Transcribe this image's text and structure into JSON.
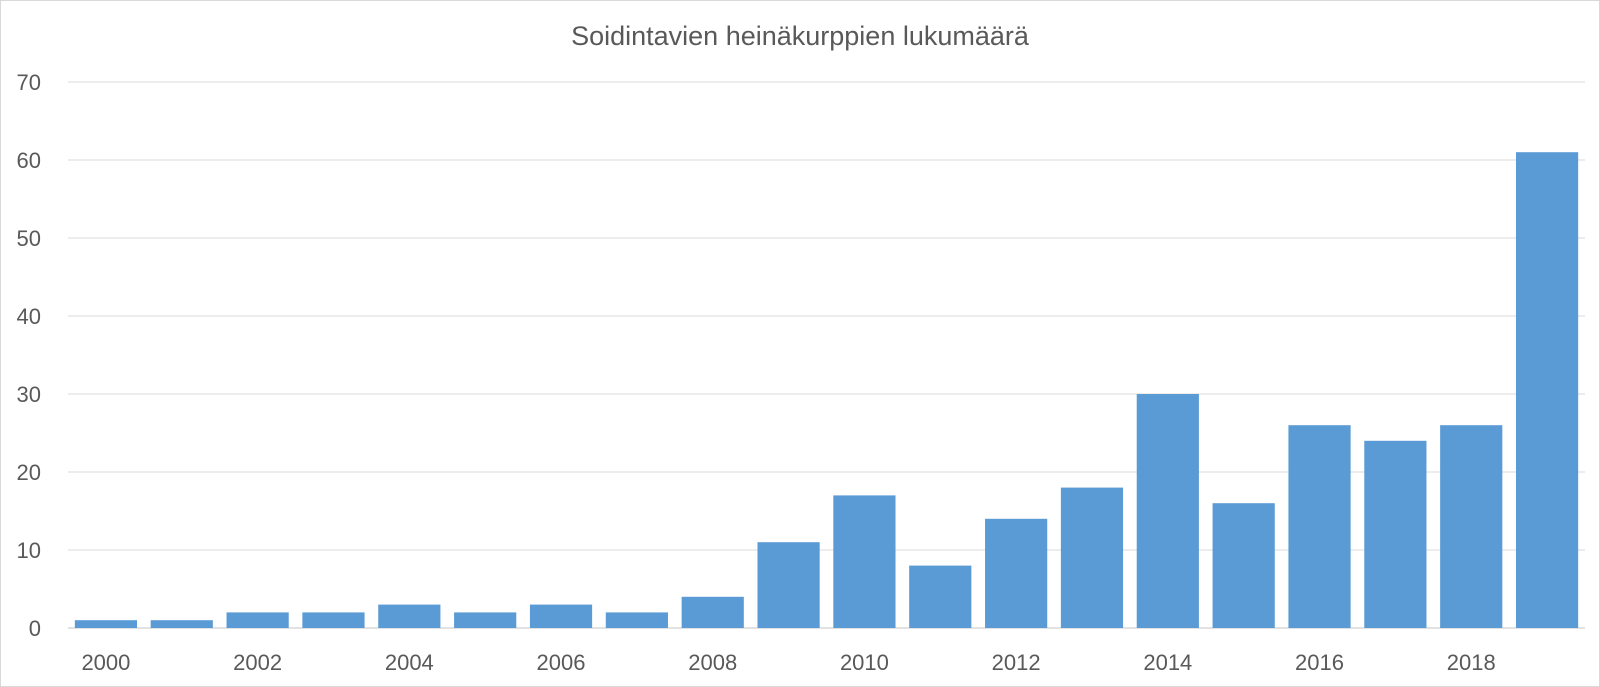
{
  "chart_data": {
    "type": "bar",
    "title": "Soidintavien heinäkurppien lukumäärä",
    "xlabel": "",
    "ylabel": "",
    "categories": [
      "2000",
      "2001",
      "2002",
      "2003",
      "2004",
      "2005",
      "2006",
      "2007",
      "2008",
      "2009",
      "2010",
      "2011",
      "2012",
      "2013",
      "2014",
      "2015",
      "2016",
      "2017",
      "2018",
      "2019"
    ],
    "x_tick_labels": [
      "2000",
      "",
      "2002",
      "",
      "2004",
      "",
      "2006",
      "",
      "2008",
      "",
      "2010",
      "",
      "2012",
      "",
      "2014",
      "",
      "2016",
      "",
      "2018",
      ""
    ],
    "values": [
      1,
      1,
      2,
      2,
      3,
      2,
      3,
      2,
      4,
      11,
      17,
      8,
      14,
      18,
      30,
      16,
      26,
      24,
      26,
      61
    ],
    "ylim": [
      0,
      70
    ],
    "yticks": [
      0,
      10,
      20,
      30,
      40,
      50,
      60,
      70
    ],
    "grid": true,
    "legend": "none",
    "bar_color": "#5b9bd5",
    "grid_color": "#d9d9d9"
  }
}
